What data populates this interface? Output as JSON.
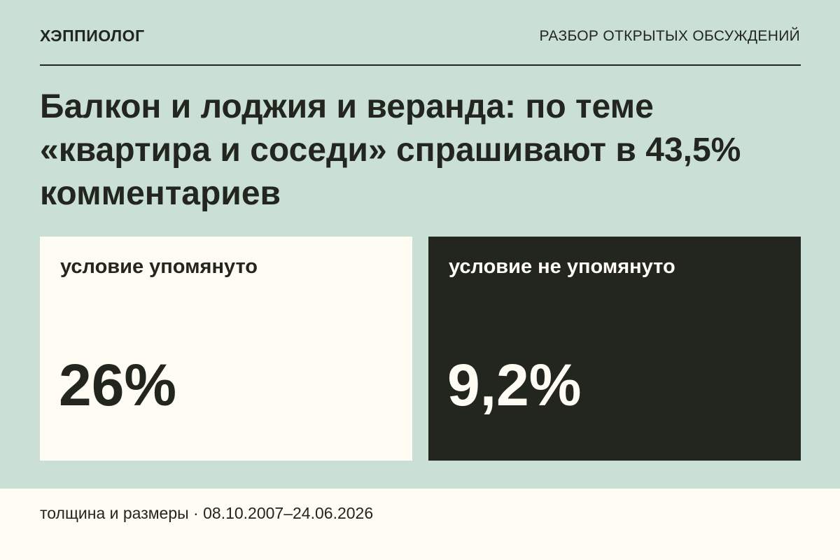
{
  "header": {
    "brand": "ХЭППИОЛОГ",
    "section": "РАЗБОР ОТКРЫТЫХ ОБСУЖДЕНИЙ"
  },
  "headline": "Балкон и лоджия и веранда: по теме «квартира и соседи» спрашивают в 43,5% комментариев",
  "cards": [
    {
      "label": "условие упомянуто",
      "value": "26%"
    },
    {
      "label": "условие не упомянуто",
      "value": "9,2%"
    }
  ],
  "footer": {
    "text": "толщина и размеры · 08.10.2007–24.06.2026"
  },
  "colors": {
    "background": "#cae0d6",
    "light_card": "#fefcf3",
    "dark_card": "#23261f",
    "text_dark": "#23261f"
  }
}
